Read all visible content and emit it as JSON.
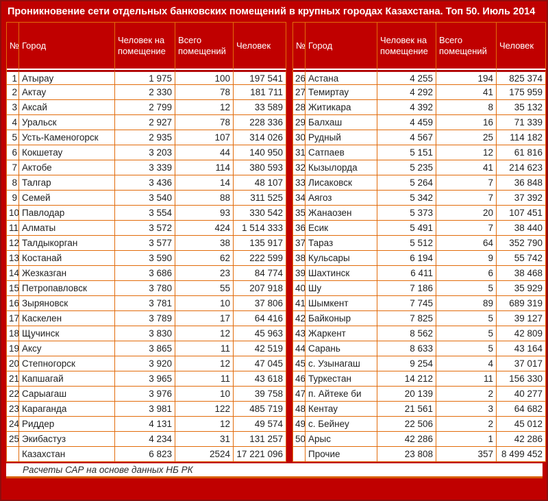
{
  "title": "Проникновение сети отдельных банковских помещений в крупных городах Казахстана.  Топ 50. Июль 2014",
  "source_note": "Расчеты САР на основе данных НБ РК",
  "colors": {
    "header_bg": "#c00000",
    "grid_line": "#e26b0a",
    "header_text": "#ffffff",
    "cell_text": "#1f1f1f"
  },
  "chart_data": {
    "type": "table",
    "title": "Проникновение сети отдельных банковских помещений в крупных городах Казахстана.  Топ 50. Июль 2014",
    "columns": [
      "№",
      "Город",
      "Человек на помещение",
      "Всего помещений",
      "Человек"
    ],
    "left_rows": [
      [
        "1",
        "Атырау",
        "1 975",
        "100",
        "197 541"
      ],
      [
        "2",
        "Актау",
        "2 330",
        "78",
        "181 711"
      ],
      [
        "3",
        "Аксай",
        "2 799",
        "12",
        "33 589"
      ],
      [
        "4",
        "Уральск",
        "2 927",
        "78",
        "228 336"
      ],
      [
        "5",
        "Усть-Каменогорск",
        "2 935",
        "107",
        "314 026"
      ],
      [
        "6",
        "Кокшетау",
        "3 203",
        "44",
        "140 950"
      ],
      [
        "7",
        "Актобе",
        "3 339",
        "114",
        "380 593"
      ],
      [
        "8",
        "Талгар",
        "3 436",
        "14",
        "48 107"
      ],
      [
        "9",
        "Семей",
        "3 540",
        "88",
        "311 525"
      ],
      [
        "10",
        "Павлодар",
        "3 554",
        "93",
        "330 542"
      ],
      [
        "11",
        "Алматы",
        "3 572",
        "424",
        "1 514 333"
      ],
      [
        "12",
        "Талдыкорган",
        "3 577",
        "38",
        "135 917"
      ],
      [
        "13",
        "Костанай",
        "3 590",
        "62",
        "222 599"
      ],
      [
        "14",
        "Жезказган",
        "3 686",
        "23",
        "84 774"
      ],
      [
        "15",
        "Петропавловск",
        "3 780",
        "55",
        "207 918"
      ],
      [
        "16",
        "Зыряновск",
        "3 781",
        "10",
        "37 806"
      ],
      [
        "17",
        "Каскелен",
        "3 789",
        "17",
        "64 416"
      ],
      [
        "18",
        "Щучинск",
        "3 830",
        "12",
        "45 963"
      ],
      [
        "19",
        "Аксу",
        "3 865",
        "11",
        "42 519"
      ],
      [
        "20",
        "Степногорск",
        "3 920",
        "12",
        "47 045"
      ],
      [
        "21",
        "Капшагай",
        "3 965",
        "11",
        "43 618"
      ],
      [
        "22",
        "Сарыагаш",
        "3 976",
        "10",
        "39 758"
      ],
      [
        "23",
        "Караганда",
        "3 981",
        "122",
        "485 719"
      ],
      [
        "24",
        "Риддер",
        "4 131",
        "12",
        "49 574"
      ],
      [
        "25",
        "Экибастуз",
        "4 234",
        "31",
        "131 257"
      ],
      [
        "",
        "Казахстан",
        "6 823",
        "2524",
        "17 221 096"
      ]
    ],
    "right_rows": [
      [
        "26",
        "Астана",
        "4 255",
        "194",
        "825 374"
      ],
      [
        "27",
        "Темиртау",
        "4 292",
        "41",
        "175 959"
      ],
      [
        "28",
        "Житикара",
        "4 392",
        "8",
        "35 132"
      ],
      [
        "29",
        "Балхаш",
        "4 459",
        "16",
        "71 339"
      ],
      [
        "30",
        "Рудный",
        "4 567",
        "25",
        "114 182"
      ],
      [
        "31",
        "Сатпаев",
        "5 151",
        "12",
        "61 816"
      ],
      [
        "32",
        "Кызылорда",
        "5 235",
        "41",
        "214 623"
      ],
      [
        "33",
        "Лисаковск",
        "5 264",
        "7",
        "36 848"
      ],
      [
        "34",
        "Аягоз",
        "5 342",
        "7",
        "37 392"
      ],
      [
        "35",
        "Жанаозен",
        "5 373",
        "20",
        "107 451"
      ],
      [
        "36",
        "Есик",
        "5 491",
        "7",
        "38 440"
      ],
      [
        "37",
        "Тараз",
        "5 512",
        "64",
        "352 790"
      ],
      [
        "38",
        "Кульсары",
        "6 194",
        "9",
        "55 742"
      ],
      [
        "39",
        "Шахтинск",
        "6 411",
        "6",
        "38 468"
      ],
      [
        "40",
        "Шу",
        "7 186",
        "5",
        "35 929"
      ],
      [
        "41",
        "Шымкент",
        "7 745",
        "89",
        "689 319"
      ],
      [
        "42",
        "Байконыр",
        "7 825",
        "5",
        "39 127"
      ],
      [
        "43",
        "Жаркент",
        "8 562",
        "5",
        "42 809"
      ],
      [
        "44",
        "Сарань",
        "8 633",
        "5",
        "43 164"
      ],
      [
        "45",
        "с. Узынагаш",
        "9 254",
        "4",
        "37 017"
      ],
      [
        "46",
        "Туркестан",
        "14 212",
        "11",
        "156 330"
      ],
      [
        "47",
        "п. Айтеке би",
        "20 139",
        "2",
        "40 277"
      ],
      [
        "48",
        "Кентау",
        "21 561",
        "3",
        "64 682"
      ],
      [
        "49",
        "с. Бейнеу",
        "22 506",
        "2",
        "45 012"
      ],
      [
        "50",
        "Арыс",
        "42 286",
        "1",
        "42 286"
      ],
      [
        "",
        "Прочие",
        "23 808",
        "357",
        "8 499 452"
      ]
    ]
  }
}
